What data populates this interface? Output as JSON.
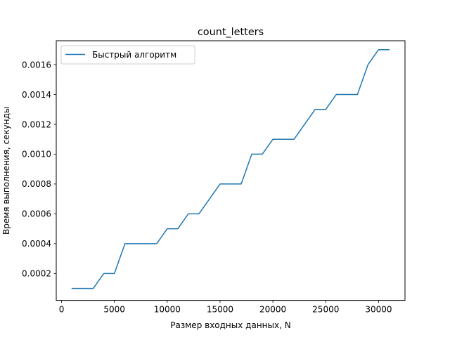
{
  "chart_data": {
    "type": "line",
    "title": "count_letters",
    "xlabel": "Размер входных данных, N",
    "ylabel": "Время выполнения, секунды",
    "xlim": [
      -500,
      32500
    ],
    "ylim": [
      2e-05,
      0.00176
    ],
    "x_ticks": [
      0,
      5000,
      10000,
      15000,
      20000,
      25000,
      30000
    ],
    "x_tick_labels": [
      "0",
      "5000",
      "10000",
      "15000",
      "20000",
      "25000",
      "30000"
    ],
    "y_ticks": [
      0.0002,
      0.0004,
      0.0006,
      0.0008,
      0.001,
      0.0012,
      0.0014,
      0.0016
    ],
    "y_tick_labels": [
      "0.0002",
      "0.0004",
      "0.0006",
      "0.0008",
      "0.0010",
      "0.0012",
      "0.0014",
      "0.0016"
    ],
    "grid": false,
    "legend_position": "upper-left",
    "series": [
      {
        "name": "Быстрый алгоритм",
        "color": "#1f77b4",
        "x": [
          1000,
          2000,
          3000,
          4000,
          5000,
          6000,
          7000,
          8000,
          9000,
          10000,
          11000,
          12000,
          13000,
          14000,
          15000,
          16000,
          17000,
          18000,
          19000,
          20000,
          21000,
          22000,
          23000,
          24000,
          25000,
          26000,
          27000,
          28000,
          29000,
          30000,
          31000
        ],
        "y": [
          0.0001,
          0.0001,
          0.0001,
          0.0002,
          0.0002,
          0.0004,
          0.0004,
          0.0004,
          0.0004,
          0.0005,
          0.0005,
          0.0006,
          0.0006,
          0.0007,
          0.0008,
          0.0008,
          0.0008,
          0.001,
          0.001,
          0.0011,
          0.0011,
          0.0011,
          0.0012,
          0.0013,
          0.0013,
          0.0014,
          0.0014,
          0.0014,
          0.0016,
          0.0017,
          0.0017
        ]
      }
    ]
  }
}
